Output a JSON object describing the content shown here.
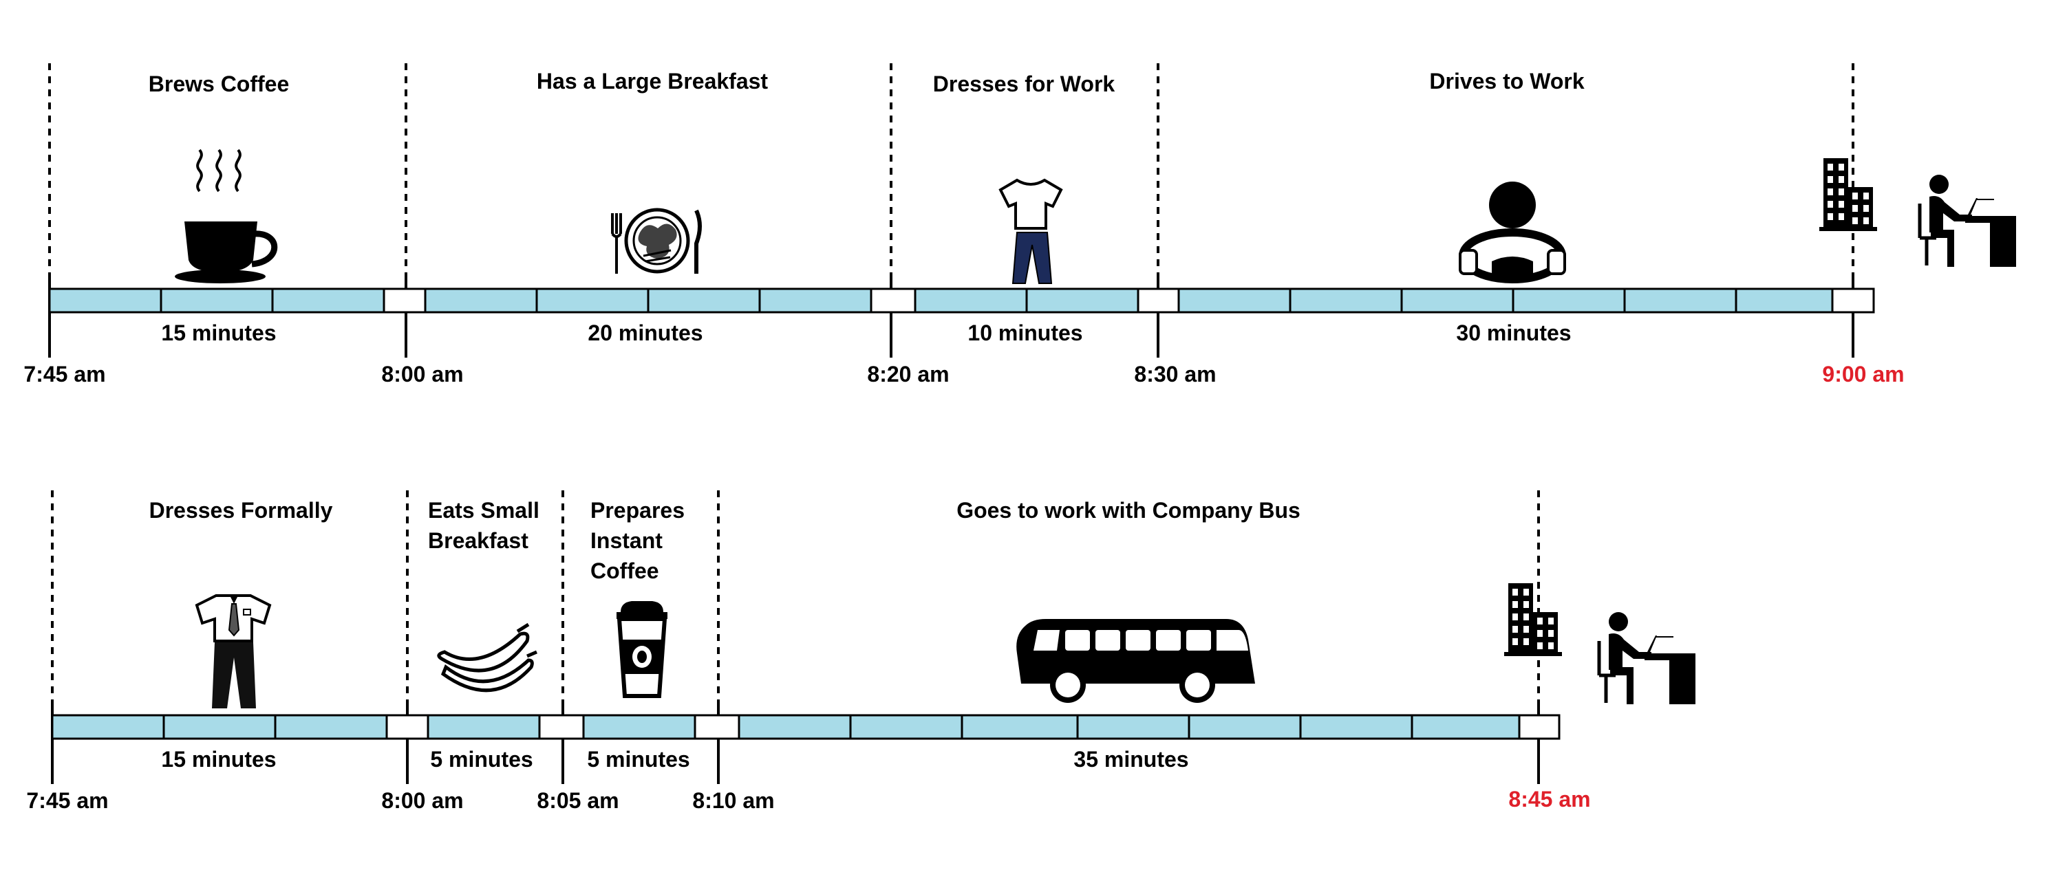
{
  "colors": {
    "segment_fill": "#a8dbe8",
    "line": "#000000",
    "deadline_text": "#e0202a"
  },
  "timelines": [
    {
      "id": "top",
      "activities": [
        {
          "label": "Brews Coffee",
          "duration": "15 minutes",
          "icon": "coffee-cup-icon"
        },
        {
          "label": "Has a Large Breakfast",
          "duration": "20 minutes",
          "icon": "plate-fork-knife-icon"
        },
        {
          "label": "Dresses for Work",
          "duration": "10 minutes",
          "icon": "tshirt-pants-icon"
        },
        {
          "label": "Drives to Work",
          "duration": "30 minutes",
          "icon": "driver-steering-wheel-icon"
        }
      ],
      "times": [
        "7:45 am",
        "8:00 am",
        "8:20 am",
        "8:30 am",
        "9:00 am"
      ],
      "arrival_time": "9:00 am",
      "destination_icons": [
        "office-building-icon",
        "person-at-desk-icon"
      ]
    },
    {
      "id": "bottom",
      "activities": [
        {
          "label": "Dresses Formally",
          "duration": "15 minutes",
          "icon": "formal-outfit-icon"
        },
        {
          "label": "Eats Small\nBreakfast",
          "duration": "5 minutes",
          "icon": "bananas-icon"
        },
        {
          "label": "Prepares\nInstant\nCoffee",
          "duration": "5 minutes",
          "icon": "takeaway-coffee-cup-icon"
        },
        {
          "label": "Goes to work with Company Bus",
          "duration": "35 minutes",
          "icon": "bus-icon"
        }
      ],
      "times": [
        "7:45 am",
        "8:00 am",
        "8:05 am",
        "8:10 am",
        "8:45 am"
      ],
      "arrival_time": "8:45 am",
      "destination_icons": [
        "office-building-icon",
        "person-at-desk-icon"
      ]
    }
  ]
}
